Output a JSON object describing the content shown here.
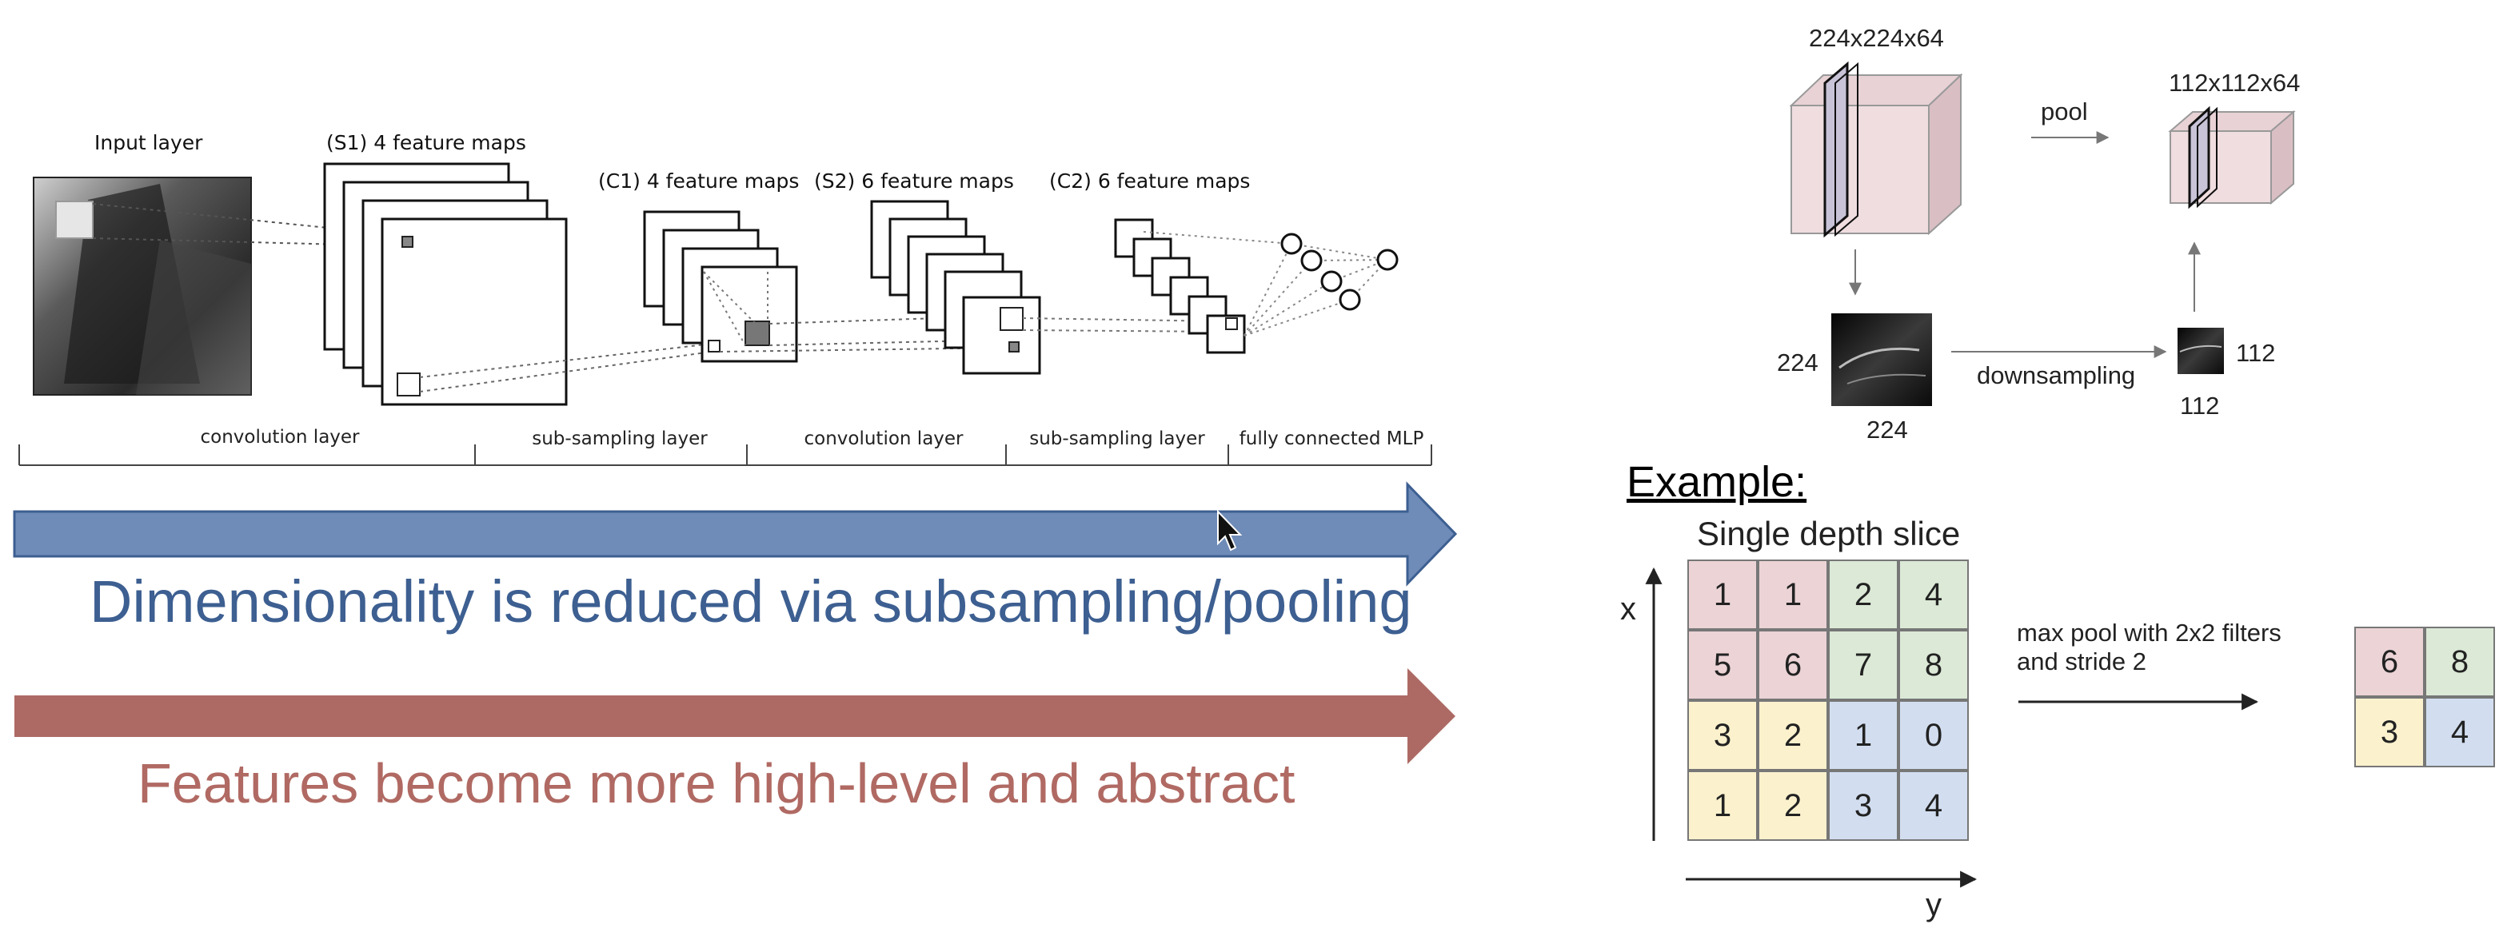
{
  "cnn": {
    "input_label": "Input layer",
    "s1_label": "(S1) 4 feature maps",
    "c1_label": "(C1) 4 feature maps",
    "s2_label": "(S2) 6 feature maps",
    "c2_label": "(C2) 6 feature maps",
    "segments": [
      "convolution layer",
      "sub-sampling layer",
      "convolution layer",
      "sub-sampling layer",
      "fully connected MLP"
    ]
  },
  "arrows": {
    "blue_text": "Dimensionality is reduced via subsampling/pooling",
    "red_text": "Features become more high-level and abstract",
    "blue_color": "#6f8bb8",
    "red_color": "#ad6a64"
  },
  "pooling_diagram": {
    "input_size": "224x224x64",
    "output_size": "112x112x64",
    "pool_label": "pool",
    "downsampling_label": "downsampling",
    "left_side": "224",
    "left_bottom": "224",
    "right_side": "112",
    "right_bottom": "112"
  },
  "example": {
    "title": "Example:",
    "slice_label": "Single depth slice",
    "x_axis": "x",
    "y_axis": "y",
    "grid": [
      [
        1,
        1,
        2,
        4
      ],
      [
        5,
        6,
        7,
        8
      ],
      [
        3,
        2,
        1,
        0
      ],
      [
        1,
        2,
        3,
        4
      ]
    ],
    "caption_line1": "max pool with 2x2 filters",
    "caption_line2": "and stride 2",
    "result": [
      [
        6,
        8
      ],
      [
        3,
        4
      ]
    ],
    "quadrant_colors": {
      "red": "#ebd3d6",
      "green": "#dbe9d6",
      "yellow": "#fbf1cd",
      "blue": "#d2def0"
    }
  }
}
